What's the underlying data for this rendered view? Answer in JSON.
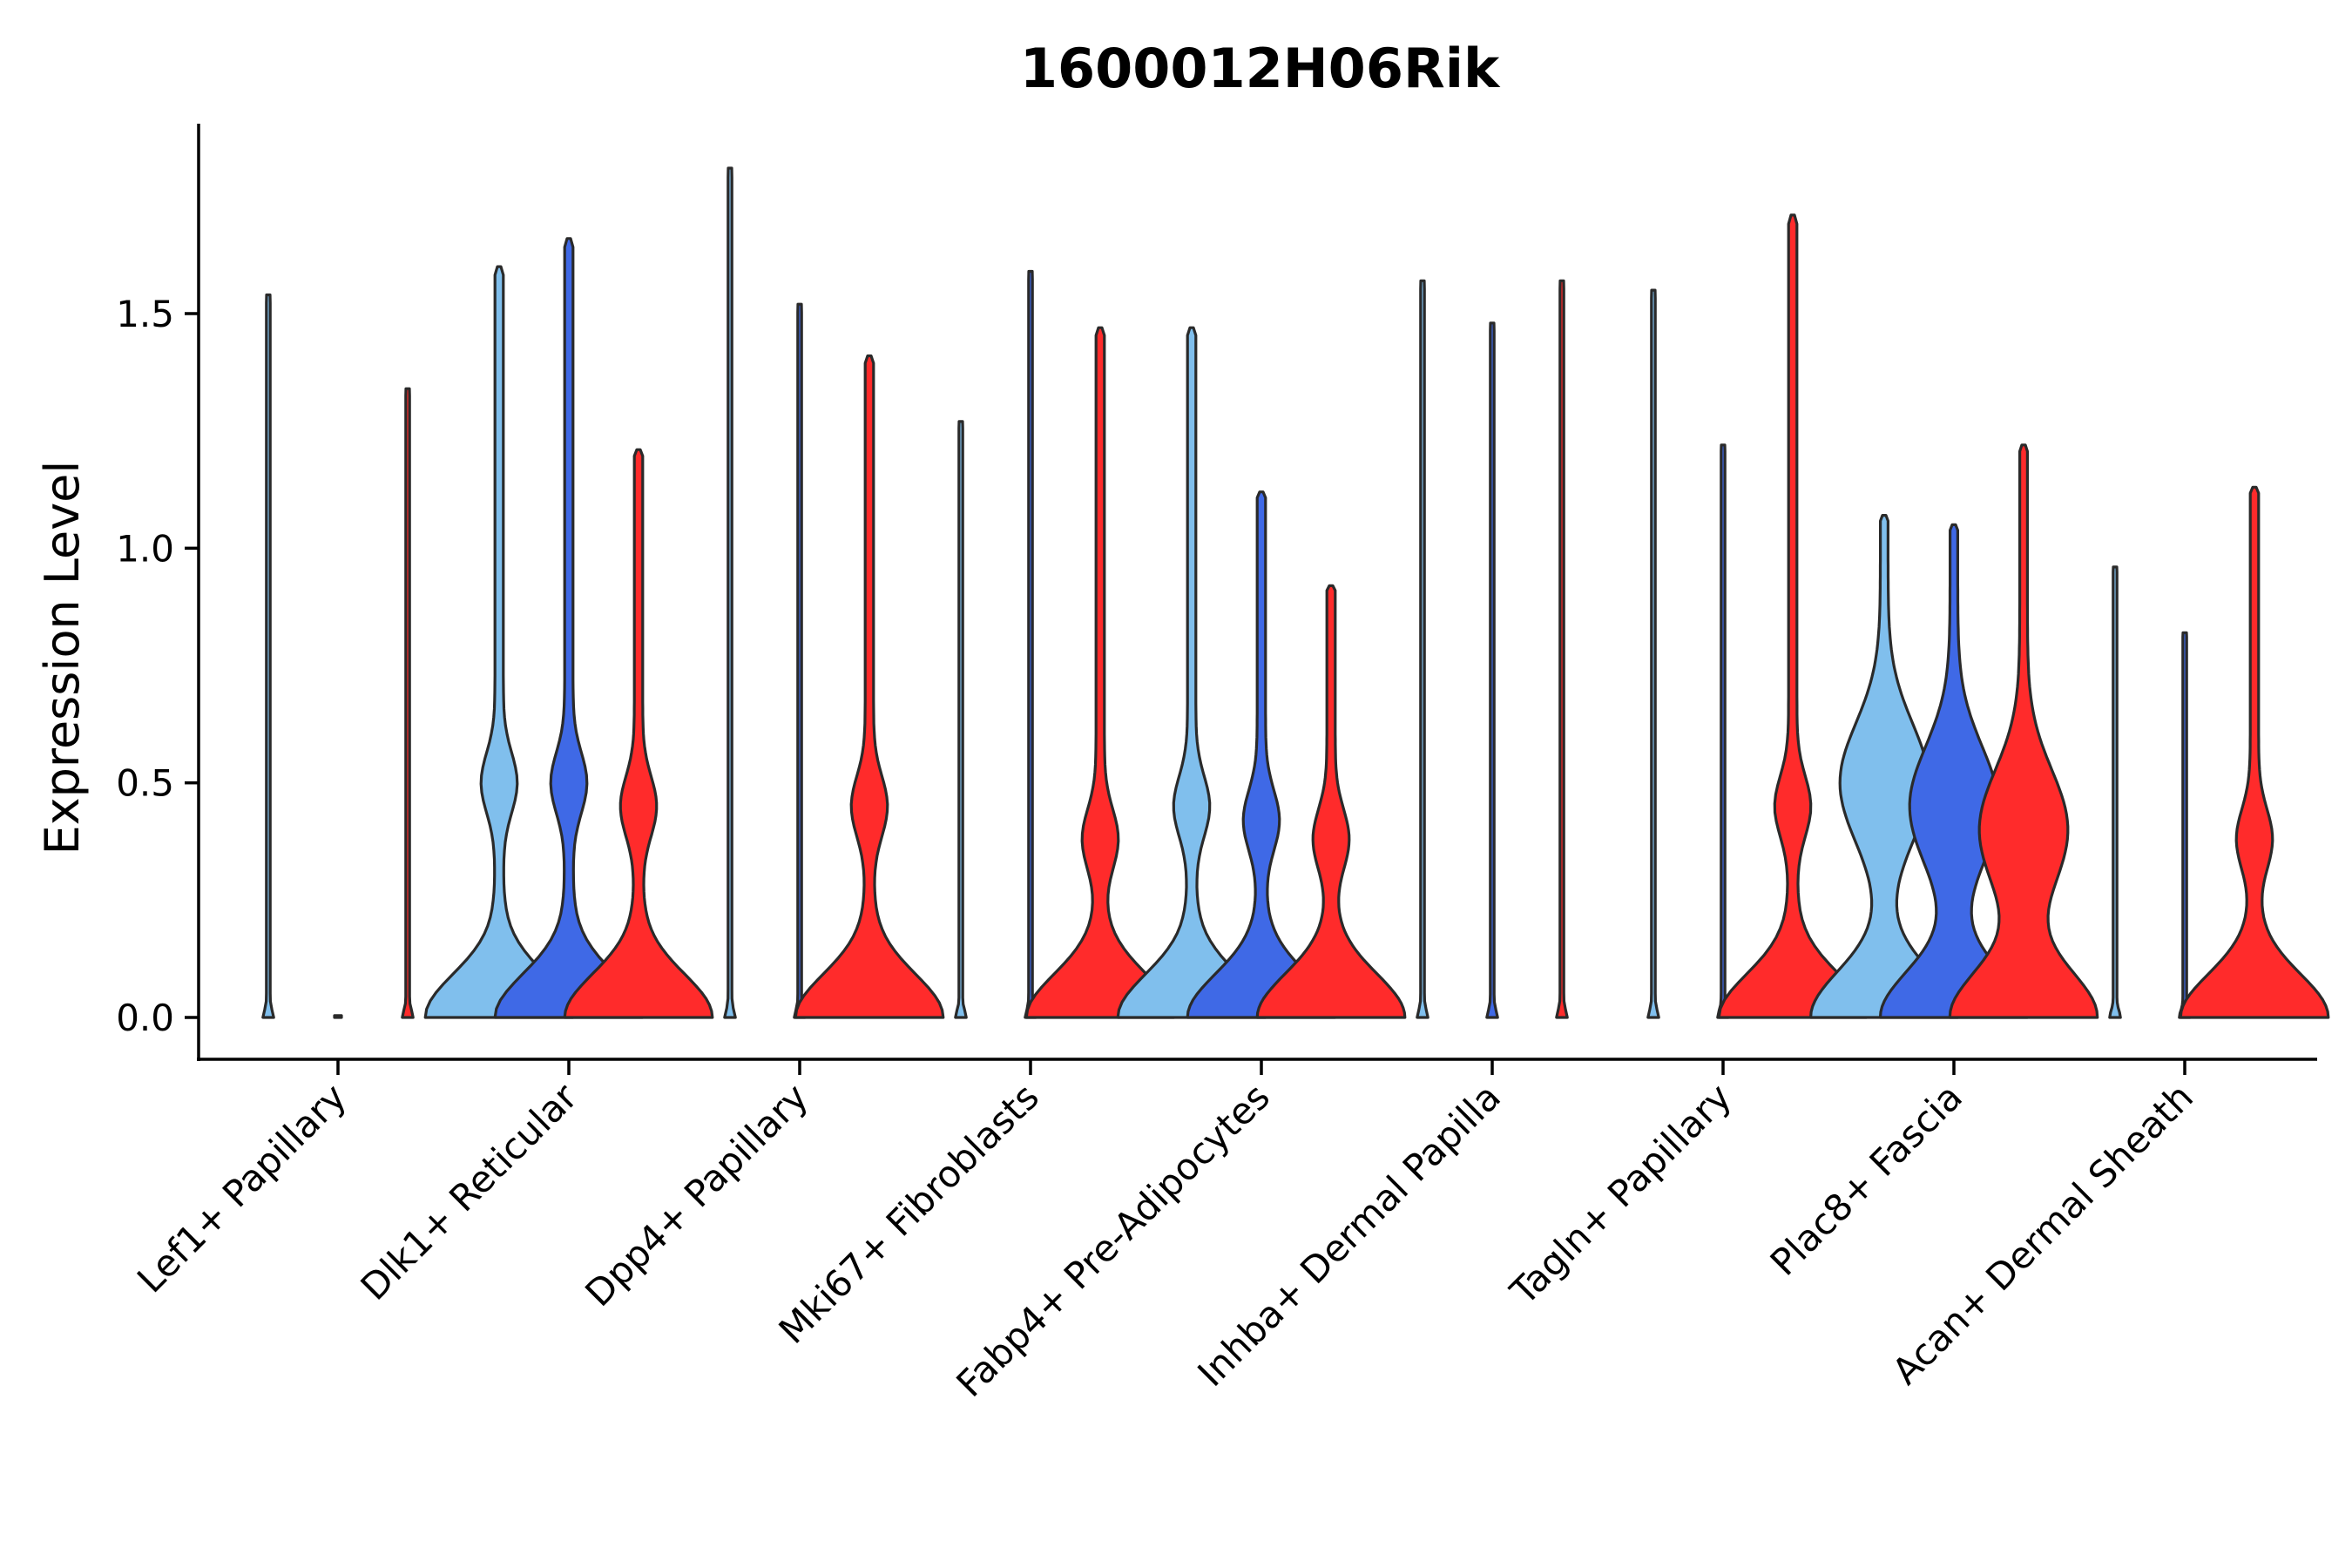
{
  "chart_data": {
    "type": "violin",
    "title": "1600012H06Rik",
    "xlabel": "",
    "ylabel": "Expression Level",
    "ylim": [
      -0.09,
      1.9
    ],
    "yticks": [
      0.0,
      0.5,
      1.0,
      1.5
    ],
    "ytick_labels": [
      "0.0",
      "0.5",
      "1.0",
      "1.5"
    ],
    "groups_per_category": 3,
    "colors": [
      "#80bfed",
      "#3f69e6",
      "#ff2b2b"
    ],
    "categories": [
      "Lef1+ Papillary",
      "Dlk1+ Reticular",
      "Dpp4+ Papillary",
      "Mki67+ Fibroblasts",
      "Fabp4+ Pre-Adipocytes",
      "Inhba+ Dermal Papilla",
      "Tagln+ Papillary",
      "Plac8+ Fascia",
      "Acan+ Dermal Sheath"
    ],
    "violins": [
      [
        {
          "max": 1.54,
          "profile": "spike"
        },
        {
          "max": 0.0,
          "profile": "flat"
        },
        {
          "max": 1.34,
          "profile": "spike"
        }
      ],
      [
        {
          "max": 1.6,
          "profile": "bimodal",
          "mode": 0.5
        },
        {
          "max": 1.66,
          "profile": "bimodal",
          "mode": 0.5
        },
        {
          "max": 1.21,
          "profile": "bimodal",
          "mode": 0.45
        }
      ],
      [
        {
          "max": 1.81,
          "profile": "spike"
        },
        {
          "max": 1.52,
          "profile": "spike"
        },
        {
          "max": 1.41,
          "profile": "bimodal",
          "mode": 0.45
        }
      ],
      [
        {
          "max": 1.27,
          "profile": "spike"
        },
        {
          "max": 1.59,
          "profile": "spike"
        },
        {
          "max": 1.47,
          "profile": "bimodal",
          "mode": 0.38
        }
      ],
      [
        {
          "max": 1.47,
          "profile": "bimodal",
          "mode": 0.45
        },
        {
          "max": 1.12,
          "profile": "bimodal",
          "mode": 0.42
        },
        {
          "max": 0.92,
          "profile": "bimodal",
          "mode": 0.38
        }
      ],
      [
        {
          "max": 1.57,
          "profile": "spike"
        },
        {
          "max": 1.48,
          "profile": "spike"
        },
        {
          "max": 1.57,
          "profile": "spike"
        }
      ],
      [
        {
          "max": 1.55,
          "profile": "spike"
        },
        {
          "max": 1.22,
          "profile": "spike"
        },
        {
          "max": 1.71,
          "profile": "bimodal",
          "mode": 0.45
        }
      ],
      [
        {
          "max": 1.07,
          "profile": "wide",
          "mode": 0.5
        },
        {
          "max": 1.05,
          "profile": "wide",
          "mode": 0.45
        },
        {
          "max": 1.22,
          "profile": "wide",
          "mode": 0.4
        }
      ],
      [
        {
          "max": 0.96,
          "profile": "spike"
        },
        {
          "max": 0.82,
          "profile": "spike"
        },
        {
          "max": 1.13,
          "profile": "bimodal",
          "mode": 0.38
        }
      ]
    ]
  }
}
